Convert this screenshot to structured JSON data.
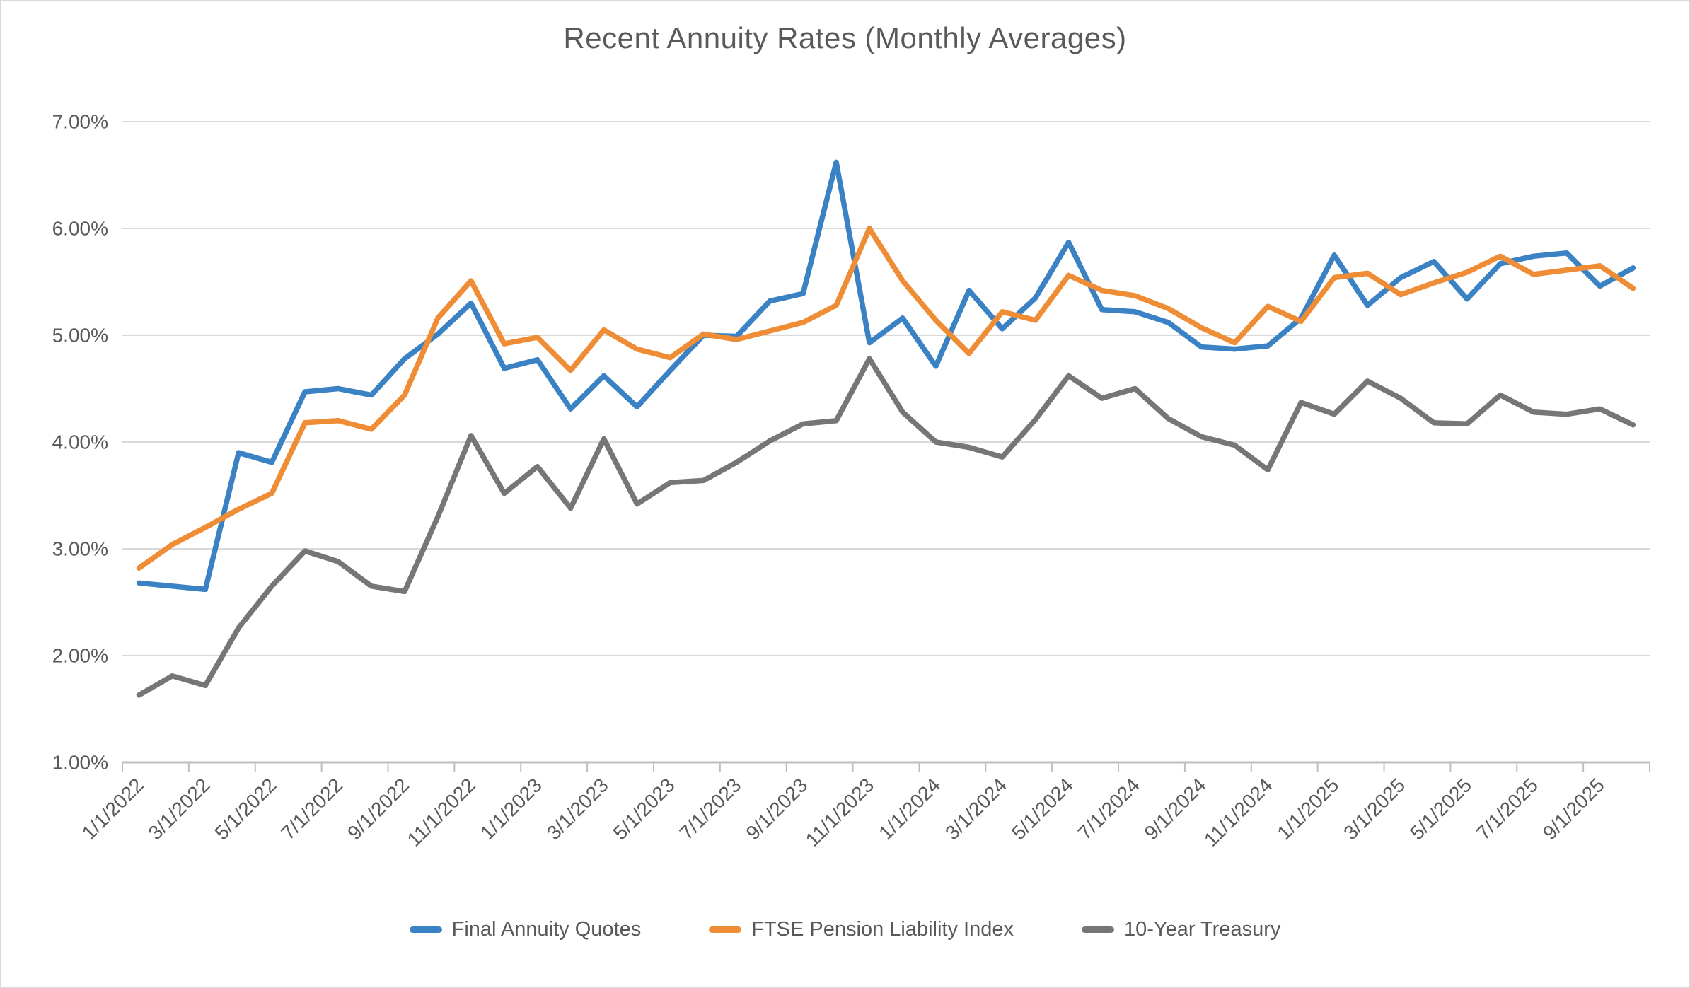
{
  "chart_data": {
    "type": "line",
    "title": "Recent Annuity Rates (Monthly Averages)",
    "categories": [
      "1/1/2022",
      "2/1/2022",
      "3/1/2022",
      "4/1/2022",
      "5/1/2022",
      "6/1/2022",
      "7/1/2022",
      "8/1/2022",
      "9/1/2022",
      "10/1/2022",
      "11/1/2022",
      "12/1/2022",
      "1/1/2023",
      "2/1/2023",
      "3/1/2023",
      "4/1/2023",
      "5/1/2023",
      "6/1/2023",
      "7/1/2023",
      "8/1/2023",
      "9/1/2023",
      "10/1/2023",
      "11/1/2023",
      "12/1/2023",
      "1/1/2024",
      "2/1/2024",
      "3/1/2024",
      "4/1/2024",
      "5/1/2024",
      "6/1/2024",
      "7/1/2024",
      "8/1/2024",
      "9/1/2024",
      "10/1/2024",
      "11/1/2024",
      "12/1/2024",
      "1/1/2025",
      "2/1/2025",
      "3/1/2025",
      "4/1/2025",
      "5/1/2025",
      "6/1/2025",
      "7/1/2025",
      "8/1/2025",
      "9/1/2025",
      "10/1/2025"
    ],
    "label_interval": 2,
    "series": [
      {
        "name": "Final Annuity Quotes",
        "color": "#3B82C4",
        "values": [
          2.68,
          2.65,
          2.62,
          3.9,
          3.81,
          4.47,
          4.5,
          4.44,
          4.78,
          5.01,
          5.3,
          4.69,
          4.77,
          4.31,
          4.62,
          4.33,
          4.67,
          5.0,
          4.99,
          5.32,
          5.39,
          6.62,
          4.93,
          5.16,
          4.71,
          5.42,
          5.06,
          5.35,
          5.87,
          5.24,
          5.22,
          5.12,
          4.89,
          4.87,
          4.9,
          5.16,
          5.75,
          5.28,
          5.54,
          5.69,
          5.34,
          5.67,
          5.74,
          5.77,
          5.46,
          5.63
        ]
      },
      {
        "name": "FTSE Pension Liability Index",
        "color": "#EF8C36",
        "values": [
          2.82,
          3.04,
          3.2,
          3.37,
          3.52,
          4.18,
          4.2,
          4.12,
          4.44,
          5.16,
          5.51,
          4.92,
          4.98,
          4.67,
          5.05,
          4.87,
          4.79,
          5.01,
          4.96,
          5.04,
          5.12,
          5.28,
          6.0,
          5.51,
          5.14,
          4.83,
          5.22,
          5.14,
          5.56,
          5.42,
          5.37,
          5.25,
          5.07,
          4.93,
          5.27,
          5.13,
          5.54,
          5.58,
          5.38,
          5.49,
          5.59,
          5.74,
          5.57,
          5.61,
          5.65,
          5.44
        ]
      },
      {
        "name": "10-Year Treasury",
        "color": "#767676",
        "values": [
          1.63,
          1.81,
          1.72,
          2.26,
          2.65,
          2.98,
          2.88,
          2.65,
          2.6,
          3.3,
          4.06,
          3.52,
          3.77,
          3.38,
          4.03,
          3.42,
          3.62,
          3.64,
          3.81,
          4.01,
          4.17,
          4.2,
          4.78,
          4.28,
          4.0,
          3.95,
          3.86,
          4.21,
          4.62,
          4.41,
          4.5,
          4.22,
          4.05,
          3.97,
          3.74,
          4.37,
          4.26,
          4.57,
          4.41,
          4.18,
          4.17,
          4.44,
          4.28,
          4.26,
          4.31,
          4.16
        ]
      }
    ],
    "ylim": [
      1.0,
      7.0
    ],
    "y_tick_step": 1.0,
    "y_ticks": [
      "1.00%",
      "2.00%",
      "3.00%",
      "4.00%",
      "5.00%",
      "6.00%",
      "7.00%"
    ],
    "grid": true,
    "legend_position": "bottom"
  },
  "style_colors": {
    "grid": "#d9d9d9",
    "axis": "#bfbfbf",
    "text": "#595959",
    "background": "#ffffff"
  }
}
